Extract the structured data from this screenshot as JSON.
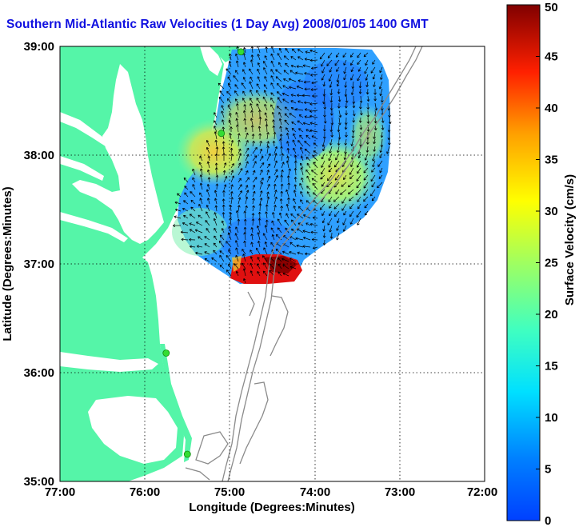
{
  "title": "Southern Mid-Atlantic Raw Velocities (1 Day Avg) 2008/01/05 1400 GMT",
  "axes": {
    "xlabel": "Longitude (Degrees:Minutes)",
    "ylabel": "Latitude (Degrees:Minutes)",
    "x_ticks": [
      "77:00",
      "76:00",
      "75:00",
      "74:00",
      "73:00",
      "72:00"
    ],
    "y_ticks": [
      "39:00",
      "38:00",
      "37:00",
      "36:00",
      "35:00"
    ],
    "xlim": [
      -77,
      -72
    ],
    "ylim": [
      35,
      39
    ],
    "grid": "dotted"
  },
  "colorbar": {
    "label": "Surface Velocity (cm/s)",
    "ticks": [
      "50",
      "45",
      "40",
      "35",
      "30",
      "25",
      "20",
      "15",
      "10",
      "5",
      "0"
    ],
    "range": [
      0,
      50
    ],
    "colormap": "jet"
  },
  "colors": {
    "land": "#55f5a8",
    "ocean": "#ffffff",
    "title": "#1010e0",
    "station": "#33dd33"
  },
  "stations": [
    {
      "lon": -74.87,
      "lat": 38.95
    },
    {
      "lon": -75.1,
      "lat": 38.2
    },
    {
      "lon": -75.75,
      "lat": 36.18
    },
    {
      "lon": -75.5,
      "lat": 35.25
    }
  ]
}
